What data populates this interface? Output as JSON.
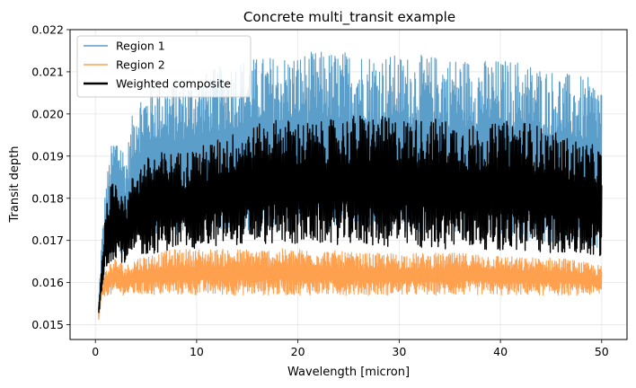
{
  "chart_data": {
    "type": "line",
    "title": "Concrete multi_transit example",
    "xlabel": "Wavelength [micron]",
    "ylabel": "Transit depth",
    "xlim": [
      -2.5,
      52.5
    ],
    "ylim": [
      0.01465,
      0.022
    ],
    "xticks": [
      0,
      10,
      20,
      30,
      40,
      50
    ],
    "xtick_labels": [
      "0",
      "10",
      "20",
      "30",
      "40",
      "50"
    ],
    "yticks": [
      0.015,
      0.016,
      0.017,
      0.018,
      0.019,
      0.02,
      0.021,
      0.022
    ],
    "ytick_labels": [
      "0.015",
      "0.016",
      "0.017",
      "0.018",
      "0.019",
      "0.020",
      "0.021",
      "0.022"
    ],
    "grid": true,
    "legend_position": "top-left",
    "series": [
      {
        "name": "Region 1",
        "color": "#5a9ec9",
        "style": "noisy-spectrum",
        "x": [
          0.3,
          0.6,
          1.0,
          1.5,
          2.0,
          2.5,
          3.0,
          4,
          6,
          8,
          10,
          14,
          18,
          22,
          26,
          30,
          34,
          38,
          42,
          46,
          50
        ],
        "lower": [
          0.015,
          0.0156,
          0.0163,
          0.0166,
          0.0168,
          0.0167,
          0.0166,
          0.0168,
          0.017,
          0.0171,
          0.0172,
          0.0172,
          0.0172,
          0.0172,
          0.0172,
          0.0172,
          0.0171,
          0.0171,
          0.017,
          0.0169,
          0.0168
        ],
        "upper": [
          0.0155,
          0.017,
          0.0183,
          0.0192,
          0.0196,
          0.0195,
          0.019,
          0.0205,
          0.0208,
          0.0208,
          0.0209,
          0.0213,
          0.0214,
          0.0215,
          0.0215,
          0.0214,
          0.0214,
          0.0213,
          0.0213,
          0.021,
          0.0208
        ]
      },
      {
        "name": "Region 2",
        "color": "#ffa04f",
        "style": "noisy-spectrum",
        "x": [
          0.3,
          0.6,
          1.0,
          1.5,
          2.0,
          2.5,
          3.0,
          4,
          6,
          8,
          10,
          14,
          18,
          22,
          26,
          30,
          34,
          38,
          42,
          46,
          50
        ],
        "lower": [
          0.015,
          0.0156,
          0.0157,
          0.0157,
          0.0157,
          0.0157,
          0.0157,
          0.0157,
          0.0157,
          0.0157,
          0.0157,
          0.0157,
          0.0157,
          0.0157,
          0.0157,
          0.0157,
          0.0157,
          0.0157,
          0.0157,
          0.0157,
          0.0157
        ],
        "upper": [
          0.0152,
          0.0159,
          0.0163,
          0.0165,
          0.0166,
          0.0165,
          0.0164,
          0.0166,
          0.0167,
          0.0168,
          0.0168,
          0.0168,
          0.0168,
          0.0168,
          0.0167,
          0.0167,
          0.0167,
          0.0167,
          0.0166,
          0.0166,
          0.0164
        ]
      },
      {
        "name": "Weighted composite",
        "color": "#000000",
        "style": "noisy-spectrum-bold",
        "x": [
          0.3,
          0.6,
          1.0,
          1.5,
          2.0,
          2.5,
          3.0,
          4,
          6,
          8,
          10,
          14,
          18,
          22,
          26,
          30,
          34,
          38,
          42,
          46,
          50
        ],
        "lower": [
          0.0152,
          0.0156,
          0.0163,
          0.0165,
          0.0166,
          0.0165,
          0.0164,
          0.0166,
          0.0167,
          0.0168,
          0.0168,
          0.0169,
          0.0169,
          0.0169,
          0.0169,
          0.0168,
          0.0168,
          0.0168,
          0.0167,
          0.0167,
          0.0165
        ],
        "upper": [
          0.0153,
          0.0165,
          0.0177,
          0.0183,
          0.0185,
          0.0184,
          0.018,
          0.0188,
          0.0191,
          0.0191,
          0.0192,
          0.0196,
          0.0199,
          0.0198,
          0.02,
          0.0199,
          0.0199,
          0.0197,
          0.0199,
          0.0195,
          0.0192
        ]
      }
    ]
  }
}
